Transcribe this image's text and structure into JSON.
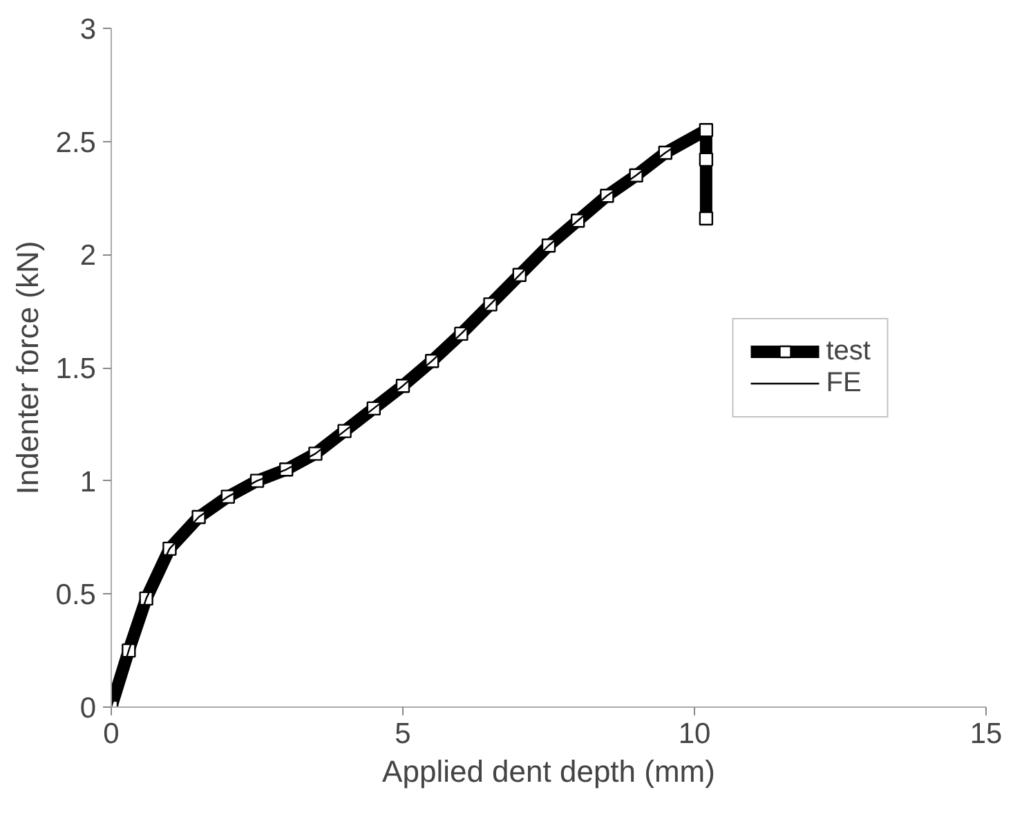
{
  "chart_data": {
    "type": "line",
    "xlabel": "Applied dent depth (mm)",
    "ylabel": "Indenter force (kN)",
    "xlim": [
      0,
      15
    ],
    "ylim": [
      0,
      3
    ],
    "xticks": [
      0,
      5,
      10,
      15
    ],
    "yticks": [
      0,
      0.5,
      1,
      1.5,
      2,
      2.5,
      3
    ],
    "grid": false,
    "legend": "right",
    "series": [
      {
        "name": "test",
        "color": "#000000",
        "marker": "square",
        "x": [
          0,
          0.3,
          0.6,
          1,
          1.5,
          2,
          2.5,
          3,
          3.5,
          4,
          4.5,
          5,
          5.5,
          6,
          6.5,
          7,
          7.5,
          8,
          8.5,
          9,
          9.5,
          10.2,
          10.2,
          10.2
        ],
        "values": [
          0,
          0.25,
          0.48,
          0.7,
          0.84,
          0.93,
          1.0,
          1.05,
          1.12,
          1.22,
          1.32,
          1.42,
          1.53,
          1.65,
          1.78,
          1.91,
          2.04,
          2.15,
          2.26,
          2.35,
          2.45,
          2.55,
          2.42,
          2.16
        ]
      },
      {
        "name": "FE",
        "color": "#000000",
        "marker": "none",
        "x": [
          0,
          0.3,
          0.6,
          1,
          1.5,
          2,
          2.5,
          3,
          3.5,
          4,
          4.5,
          5,
          5.5,
          6,
          6.5,
          7,
          7.5,
          8,
          8.5,
          9,
          9.5,
          10.1
        ],
        "values": [
          0,
          0.25,
          0.48,
          0.7,
          0.84,
          0.93,
          1.0,
          1.05,
          1.12,
          1.22,
          1.32,
          1.42,
          1.53,
          1.65,
          1.78,
          1.91,
          2.04,
          2.15,
          2.26,
          2.35,
          2.45,
          2.55
        ]
      }
    ]
  }
}
